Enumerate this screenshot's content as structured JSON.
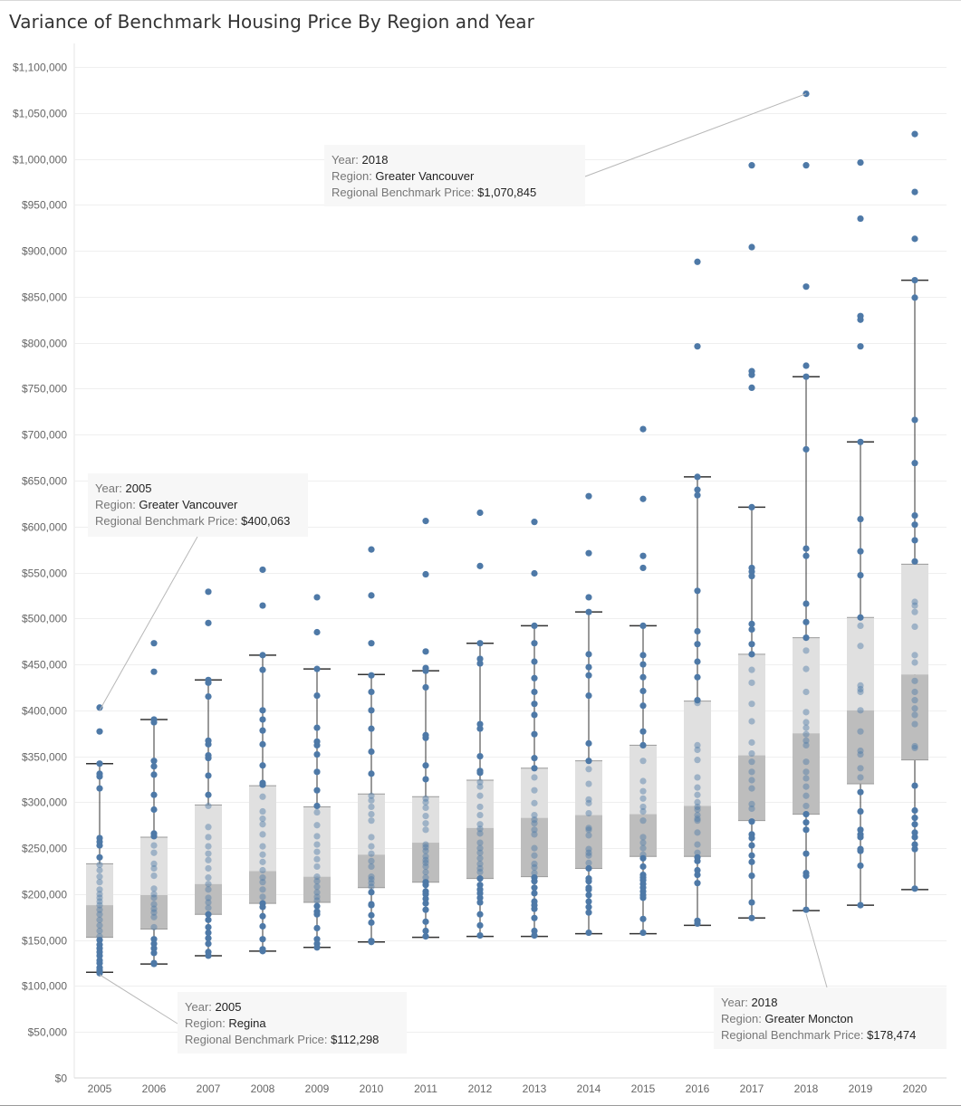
{
  "title": "Variance of Benchmark Housing Price By Region and Year",
  "chart_data": {
    "type": "box-and-whisker with dot strip",
    "title": "Variance of Benchmark Housing Price By Region and Year",
    "xlabel": "",
    "ylabel": "",
    "categories": [
      "2005",
      "2006",
      "2007",
      "2008",
      "2009",
      "2010",
      "2011",
      "2012",
      "2013",
      "2014",
      "2015",
      "2016",
      "2017",
      "2018",
      "2019",
      "2020"
    ],
    "ylim": [
      0,
      1100000
    ],
    "y_ticks": [
      0,
      50000,
      100000,
      150000,
      200000,
      250000,
      300000,
      350000,
      400000,
      450000,
      500000,
      550000,
      600000,
      650000,
      700000,
      750000,
      800000,
      850000,
      900000,
      950000,
      1000000,
      1050000,
      1100000
    ],
    "y_tick_labels": [
      "$0",
      "$50,000",
      "$100,000",
      "$150,000",
      "$200,000",
      "$250,000",
      "$300,000",
      "$350,000",
      "$400,000",
      "$450,000",
      "$500,000",
      "$550,000",
      "$600,000",
      "$650,000",
      "$700,000",
      "$750,000",
      "$800,000",
      "$850,000",
      "$900,000",
      "$950,000",
      "$1,000,000",
      "$1,050,000",
      "$1,100,000"
    ],
    "grid": true,
    "colors": {
      "dot": "#4e79a7",
      "box_upper": "#e0e0e0",
      "box_lower": "#bdbdbd",
      "whisker": "#333333"
    },
    "boxes": [
      {
        "year": "2005",
        "lower_whisker": 115000,
        "q1": 153000,
        "median": 188000,
        "q3": 233000,
        "upper_whisker": 342000
      },
      {
        "year": "2006",
        "lower_whisker": 124000,
        "q1": 162000,
        "median": 199000,
        "q3": 262000,
        "upper_whisker": 390000
      },
      {
        "year": "2007",
        "lower_whisker": 133000,
        "q1": 178000,
        "median": 211000,
        "q3": 297000,
        "upper_whisker": 433000
      },
      {
        "year": "2008",
        "lower_whisker": 138000,
        "q1": 190000,
        "median": 225000,
        "q3": 318000,
        "upper_whisker": 460000
      },
      {
        "year": "2009",
        "lower_whisker": 142000,
        "q1": 191000,
        "median": 219000,
        "q3": 295000,
        "upper_whisker": 445000
      },
      {
        "year": "2010",
        "lower_whisker": 148000,
        "q1": 207000,
        "median": 243000,
        "q3": 309000,
        "upper_whisker": 439000
      },
      {
        "year": "2011",
        "lower_whisker": 153000,
        "q1": 213000,
        "median": 256000,
        "q3": 306000,
        "upper_whisker": 443000
      },
      {
        "year": "2012",
        "lower_whisker": 154000,
        "q1": 217000,
        "median": 272000,
        "q3": 324000,
        "upper_whisker": 473000
      },
      {
        "year": "2013",
        "lower_whisker": 154000,
        "q1": 219000,
        "median": 283000,
        "q3": 337000,
        "upper_whisker": 492000
      },
      {
        "year": "2014",
        "lower_whisker": 157000,
        "q1": 228000,
        "median": 286000,
        "q3": 345000,
        "upper_whisker": 507000
      },
      {
        "year": "2015",
        "lower_whisker": 157000,
        "q1": 241000,
        "median": 287000,
        "q3": 362000,
        "upper_whisker": 492000
      },
      {
        "year": "2016",
        "lower_whisker": 166000,
        "q1": 241000,
        "median": 296000,
        "q3": 410000,
        "upper_whisker": 654000
      },
      {
        "year": "2017",
        "lower_whisker": 174000,
        "q1": 280000,
        "median": 351000,
        "q3": 461000,
        "upper_whisker": 621000
      },
      {
        "year": "2018",
        "lower_whisker": 182000,
        "q1": 287000,
        "median": 375000,
        "q3": 479000,
        "upper_whisker": 763000
      },
      {
        "year": "2019",
        "lower_whisker": 188000,
        "q1": 320000,
        "median": 400000,
        "q3": 501000,
        "upper_whisker": 692000
      },
      {
        "year": "2020",
        "lower_whisker": 205000,
        "q1": 346000,
        "median": 439000,
        "q3": 559000,
        "upper_whisker": 868000
      }
    ],
    "points": {
      "2005": [
        403000,
        377000,
        342000,
        331000,
        328000,
        315000,
        261000,
        257000,
        253000,
        240000,
        232000,
        226000,
        219000,
        213000,
        205000,
        200000,
        196000,
        192000,
        188000,
        183000,
        178000,
        172000,
        166000,
        160000,
        154000,
        150000,
        145000,
        141000,
        137000,
        133000,
        128000,
        125000,
        120000,
        117000,
        114000
      ],
      "2006": [
        473000,
        442000,
        390000,
        387000,
        345000,
        339000,
        330000,
        308000,
        292000,
        266000,
        263000,
        253000,
        245000,
        233000,
        228000,
        220000,
        206000,
        200000,
        196000,
        189000,
        184000,
        180000,
        175000,
        164000,
        151000,
        146000,
        141000,
        136000,
        125000,
        124000
      ],
      "2007": [
        529000,
        495000,
        433000,
        430000,
        415000,
        367000,
        363000,
        351000,
        348000,
        329000,
        308000,
        296000,
        273000,
        262000,
        252000,
        244000,
        237000,
        228000,
        218000,
        211000,
        205000,
        196000,
        191000,
        185000,
        178000,
        172000,
        164000,
        158000,
        152000,
        146000,
        137000,
        133000
      ],
      "2008": [
        553000,
        514000,
        460000,
        444000,
        400000,
        390000,
        378000,
        363000,
        340000,
        321000,
        319000,
        306000,
        290000,
        282000,
        276000,
        265000,
        252000,
        243000,
        235000,
        226000,
        218000,
        213000,
        205000,
        197000,
        190000,
        186000,
        176000,
        165000,
        151000,
        140000,
        138000
      ],
      "2009": [
        523000,
        485000,
        445000,
        416000,
        381000,
        366000,
        362000,
        352000,
        333000,
        313000,
        296000,
        289000,
        275000,
        263000,
        254000,
        246000,
        238000,
        230000,
        219000,
        214000,
        208000,
        202000,
        197000,
        193000,
        187000,
        181000,
        178000,
        163000,
        151000,
        146000,
        142000
      ],
      "2010": [
        575000,
        525000,
        473000,
        438000,
        420000,
        400000,
        380000,
        355000,
        331000,
        307000,
        302000,
        295000,
        287000,
        280000,
        262000,
        252000,
        244000,
        236000,
        230000,
        219000,
        216000,
        212000,
        208000,
        202000,
        189000,
        188000,
        177000,
        169000,
        149000,
        148000
      ],
      "2011": [
        606000,
        548000,
        464000,
        446000,
        443000,
        425000,
        373000,
        370000,
        340000,
        325000,
        304000,
        300000,
        294000,
        285000,
        277000,
        270000,
        254000,
        251000,
        247000,
        241000,
        237000,
        234000,
        230000,
        224000,
        218000,
        213000,
        210000,
        203000,
        200000,
        195000,
        190000,
        183000,
        170000,
        160000,
        154000
      ],
      "2012": [
        615000,
        557000,
        473000,
        456000,
        451000,
        385000,
        380000,
        350000,
        334000,
        332000,
        322000,
        317000,
        307000,
        295000,
        286000,
        276000,
        271000,
        266000,
        256000,
        250000,
        245000,
        239000,
        233000,
        228000,
        224000,
        217000,
        210000,
        205000,
        201000,
        196000,
        191000,
        178000,
        166000,
        155000
      ],
      "2013": [
        605000,
        549000,
        492000,
        473000,
        453000,
        435000,
        420000,
        407000,
        395000,
        374000,
        348000,
        337000,
        327000,
        313000,
        299000,
        286000,
        281000,
        277000,
        270000,
        265000,
        250000,
        242000,
        233000,
        229000,
        223000,
        218000,
        214000,
        207000,
        201000,
        192000,
        188000,
        184000,
        174000,
        160000,
        155000
      ],
      "2014": [
        633000,
        571000,
        523000,
        507000,
        461000,
        447000,
        438000,
        416000,
        364000,
        345000,
        336000,
        320000,
        303000,
        299000,
        288000,
        272000,
        270000,
        264000,
        249000,
        245000,
        242000,
        234000,
        228000,
        217000,
        214000,
        207000,
        205000,
        199000,
        192000,
        186000,
        180000,
        158000
      ],
      "2015": [
        706000,
        630000,
        568000,
        555000,
        492000,
        460000,
        450000,
        436000,
        421000,
        405000,
        377000,
        362000,
        345000,
        323000,
        312000,
        304000,
        295000,
        290000,
        280000,
        262000,
        256000,
        250000,
        243000,
        239000,
        230000,
        221000,
        218000,
        215000,
        211000,
        207000,
        203000,
        199000,
        196000,
        173000,
        158000
      ],
      "2016": [
        888000,
        796000,
        654000,
        640000,
        634000,
        530000,
        486000,
        472000,
        453000,
        436000,
        411000,
        408000,
        362000,
        357000,
        346000,
        327000,
        316000,
        308000,
        300000,
        295000,
        292000,
        286000,
        282000,
        280000,
        267000,
        254000,
        245000,
        240000,
        236000,
        226000,
        221000,
        212000,
        171000,
        168000
      ],
      "2017": [
        993000,
        904000,
        769000,
        765000,
        751000,
        621000,
        555000,
        551000,
        546000,
        494000,
        488000,
        472000,
        461000,
        444000,
        430000,
        407000,
        388000,
        365000,
        353000,
        344000,
        333000,
        324000,
        315000,
        298000,
        293000,
        279000,
        265000,
        261000,
        253000,
        242000,
        235000,
        220000,
        191000,
        174000
      ],
      "2018": [
        1070845,
        993000,
        861000,
        775000,
        763000,
        684000,
        576000,
        568000,
        516000,
        496000,
        479000,
        465000,
        445000,
        420000,
        398000,
        387000,
        381000,
        374000,
        367000,
        362000,
        344000,
        333000,
        326000,
        317000,
        307000,
        296000,
        287000,
        278000,
        270000,
        244000,
        223000,
        220000,
        183000
      ],
      "2019": [
        996000,
        935000,
        829000,
        825000,
        796000,
        692000,
        608000,
        573000,
        547000,
        501000,
        492000,
        470000,
        427000,
        423000,
        420000,
        400000,
        377000,
        356000,
        352000,
        337000,
        327000,
        311000,
        290000,
        270000,
        265000,
        262000,
        249000,
        247000,
        231000,
        188000
      ],
      "2020": [
        1027000,
        964000,
        913000,
        868000,
        849000,
        716000,
        669000,
        612000,
        602000,
        585000,
        562000,
        518000,
        514000,
        507000,
        491000,
        460000,
        452000,
        432000,
        420000,
        411000,
        402000,
        395000,
        385000,
        361000,
        359000,
        318000,
        291000,
        283000,
        276000,
        267000,
        262000,
        254000,
        249000,
        206000
      ]
    },
    "annotations": [
      {
        "year": "2018",
        "value": 1070845,
        "year_label": "Year:",
        "year_value": "2018",
        "region_label": "Region:",
        "region_value": "Greater Vancouver",
        "price_label": "Regional Benchmark Price:",
        "price_value": "$1,070,845"
      },
      {
        "year": "2005",
        "value": 400063,
        "year_label": "Year:",
        "year_value": "2005",
        "region_label": "Region:",
        "region_value": "Greater Vancouver",
        "price_label": "Regional Benchmark Price:",
        "price_value": "$400,063"
      },
      {
        "year": "2005",
        "value": 112298,
        "year_label": "Year:",
        "year_value": "2005",
        "region_label": "Region:",
        "region_value": "Regina",
        "price_label": "Regional Benchmark Price:",
        "price_value": "$112,298"
      },
      {
        "year": "2018",
        "value": 178474,
        "year_label": "Year:",
        "year_value": "2018",
        "region_label": "Region:",
        "region_value": "Greater Moncton",
        "price_label": "Regional Benchmark Price:",
        "price_value": "$178,474"
      }
    ]
  }
}
